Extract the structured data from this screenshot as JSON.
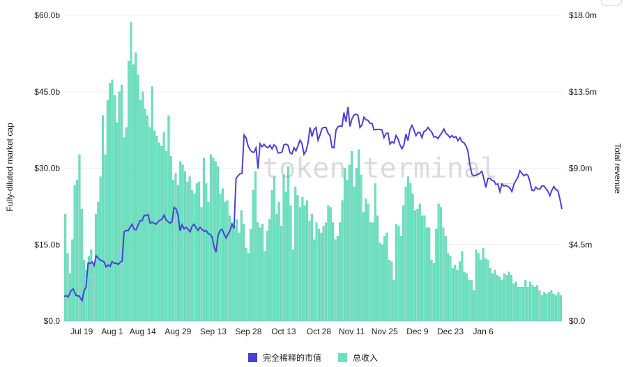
{
  "colors": {
    "bar": "#6ee0c0",
    "bar_stroke": "#4fcfab",
    "line": "#4b3fd6",
    "grid": "#ededed"
  },
  "watermark": "token terminal_",
  "legend": [
    {
      "label": "完全稀释的市值",
      "color": "#4b3fd6"
    },
    {
      "label": "总收入",
      "color": "#6ee0c0"
    }
  ],
  "chart_data": {
    "type": "bar+line",
    "left_axis": {
      "label": "Fully-diluted market cap",
      "ticks": [
        "$0.0",
        "$15.0b",
        "$30.0b",
        "$45.0b",
        "$60.0b"
      ],
      "range": [
        0,
        60
      ]
    },
    "right_axis": {
      "label": "Total revenue",
      "ticks": [
        "$0.0",
        "$4.5m",
        "$9.0m",
        "$13.5m",
        "$18.0m"
      ],
      "range": [
        0,
        18
      ]
    },
    "x_ticks": [
      "Jul 19",
      "Aug 1",
      "Aug 14",
      "Aug 29",
      "Sep 13",
      "Sep 28",
      "Oct 13",
      "Oct 28",
      "Nov 11",
      "Nov 25",
      "Dec 9",
      "Dec 23",
      "Jan 6"
    ],
    "x_tick_index": [
      7,
      20,
      33,
      48,
      63,
      78,
      93,
      108,
      122,
      136,
      150,
      164,
      178
    ],
    "grid": true,
    "series": [
      {
        "name": "总收入",
        "kind": "bar",
        "axis": "right",
        "values": [
          6.3,
          4.0,
          2.8,
          4.8,
          8.0,
          8.3,
          9.8,
          6.6,
          3.6,
          3.0,
          3.8,
          4.2,
          3.3,
          6.3,
          7.0,
          8.5,
          12.1,
          9.8,
          13.0,
          14.0,
          14.2,
          13.3,
          11.7,
          13.5,
          13.9,
          10.8,
          11.4,
          15.3,
          17.6,
          15.1,
          15.8,
          14.5,
          13.0,
          13.5,
          12.5,
          12.1,
          11.4,
          13.8,
          11.2,
          10.9,
          10.5,
          10.3,
          11.1,
          10.0,
          12.1,
          9.7,
          8.3,
          8.7,
          8.0,
          9.4,
          9.2,
          8.8,
          8.2,
          8.5,
          7.7,
          7.5,
          8.1,
          8.2,
          6.7,
          9.6,
          8.1,
          7.0,
          9.8,
          9.6,
          9.4,
          9.1,
          7.5,
          7.8,
          7.0,
          7.1,
          6.2,
          5.8,
          5.6,
          6.0,
          5.2,
          6.5,
          5.7,
          4.3,
          4.0,
          5.4,
          7.7,
          8.8,
          5.8,
          5.5,
          5.7,
          4.1,
          5.3,
          6.0,
          7.7,
          8.5,
          6.3,
          7.0,
          5.6,
          8.6,
          7.6,
          9.1,
          6.8,
          4.2,
          7.9,
          7.4,
          6.7,
          7.3,
          6.8,
          7.1,
          5.9,
          6.3,
          4.8,
          5.8,
          5.4,
          5.2,
          5.6,
          5.8,
          6.8,
          6.7,
          5.8,
          4.8,
          5.0,
          5.8,
          7.1,
          9.0,
          8.3,
          9.2,
          10.0,
          7.9,
          9.0,
          10.1,
          8.6,
          6.4,
          7.2,
          6.9,
          5.8,
          5.8,
          8.1,
          6.2,
          4.6,
          4.5,
          5.0,
          5.2,
          3.6,
          3.5,
          2.4,
          5.7,
          5.6,
          5.0,
          6.8,
          7.9,
          8.5,
          8.1,
          7.5,
          6.5,
          6.6,
          6.9,
          6.2,
          6.2,
          5.5,
          5.5,
          3.6,
          3.4,
          5.4,
          6.9,
          6.7,
          5.5,
          5.0,
          4.0,
          3.8,
          3.1,
          3.3,
          3.0,
          3.5,
          4.1,
          2.9,
          2.8,
          2.4,
          2.4,
          1.8,
          4.2,
          4.0,
          3.6,
          4.3,
          3.7,
          3.6,
          3.1,
          2.8,
          3.0,
          2.7,
          2.6,
          2.4,
          2.8,
          2.7,
          2.9,
          2.7,
          2.2,
          2.3,
          2.0,
          2.0,
          2.0,
          2.4,
          2.0,
          2.3,
          2.1,
          2.0,
          2.1,
          1.8,
          1.5,
          1.7,
          1.6,
          1.7,
          1.8,
          1.6,
          1.5,
          1.7,
          1.5
        ]
      },
      {
        "name": "完全稀释的市值",
        "kind": "line",
        "axis": "left",
        "values": [
          [
            0,
            4.8
          ],
          [
            2,
            5.0
          ],
          [
            4,
            4.7
          ],
          [
            7,
            6.0
          ],
          [
            9,
            6.3
          ],
          [
            12,
            5.0
          ],
          [
            15,
            4.9
          ],
          [
            18,
            4.0
          ],
          [
            20,
            6.0
          ],
          [
            22,
            6.7
          ],
          [
            24,
            11.4
          ],
          [
            26,
            11.3
          ],
          [
            28,
            11.6
          ],
          [
            30,
            10.9
          ],
          [
            32,
            12.8
          ],
          [
            34,
            12.4
          ],
          [
            36,
            12.0
          ],
          [
            38,
            11.8
          ],
          [
            40,
            11.6
          ],
          [
            42,
            10.6
          ],
          [
            44,
            11.0
          ],
          [
            46,
            10.7
          ],
          [
            48,
            11.7
          ],
          [
            50,
            11.3
          ],
          [
            52,
            11.4
          ],
          [
            54,
            11.1
          ],
          [
            56,
            11.5
          ],
          [
            58,
            11.8
          ],
          [
            60,
            17.5
          ],
          [
            62,
            17.8
          ],
          [
            64,
            17.7
          ],
          [
            66,
            18.4
          ],
          [
            68,
            19.0
          ],
          [
            70,
            18.0
          ],
          [
            72,
            17.9
          ],
          [
            74,
            18.8
          ],
          [
            76,
            19.7
          ],
          [
            78,
            19.7
          ],
          [
            80,
            20.7
          ],
          [
            82,
            20.7
          ],
          [
            84,
            20.9
          ],
          [
            86,
            19.2
          ],
          [
            88,
            19.4
          ],
          [
            90,
            19.2
          ],
          [
            92,
            19.0
          ],
          [
            94,
            19.5
          ],
          [
            96,
            19.8
          ],
          [
            98,
            20.0
          ],
          [
            100,
            20.8
          ],
          [
            102,
            19.9
          ],
          [
            104,
            19.5
          ],
          [
            106,
            19.2
          ],
          [
            108,
            19.5
          ],
          [
            110,
            22.3
          ],
          [
            112,
            22.0
          ],
          [
            114,
            20.8
          ],
          [
            116,
            17.7
          ],
          [
            118,
            18.9
          ],
          [
            120,
            18.1
          ],
          [
            122,
            18.4
          ],
          [
            124,
            18.0
          ],
          [
            126,
            17.5
          ],
          [
            128,
            18.6
          ],
          [
            130,
            19.0
          ],
          [
            132,
            18.3
          ],
          [
            134,
            17.8
          ],
          [
            136,
            18.4
          ],
          [
            138,
            18.0
          ],
          [
            140,
            17.6
          ],
          [
            142,
            17.8
          ],
          [
            144,
            17.2
          ],
          [
            146,
            17.0
          ],
          [
            148,
            16.5
          ],
          [
            150,
            14.6
          ],
          [
            152,
            13.5
          ],
          [
            154,
            16.8
          ],
          [
            156,
            17.8
          ],
          [
            158,
            18.0
          ],
          [
            160,
            17.1
          ],
          [
            162,
            16.3
          ],
          [
            164,
            17.0
          ],
          [
            166,
            17.8
          ],
          [
            168,
            19.0
          ],
          [
            170,
            18.2
          ],
          [
            172,
            28.0
          ],
          [
            174,
            28.5
          ],
          [
            176,
            28.9
          ],
          [
            178,
            29.0
          ],
          [
            180,
            36.5
          ],
          [
            182,
            36.0
          ],
          [
            184,
            34.4
          ],
          [
            186,
            33.6
          ],
          [
            188,
            33.2
          ],
          [
            190,
            33.1
          ],
          [
            192,
            34.0
          ],
          [
            194,
            29.9
          ],
          [
            196,
            34.8
          ],
          [
            198,
            34.2
          ],
          [
            200,
            34.7
          ],
          [
            202,
            34.2
          ],
          [
            204,
            34.0
          ],
          [
            206,
            34.5
          ],
          [
            208,
            33.8
          ],
          [
            210,
            34.6
          ],
          [
            212,
            34.2
          ],
          [
            214,
            33.0
          ],
          [
            216,
            33.0
          ],
          [
            218,
            33.2
          ],
          [
            220,
            34.6
          ],
          [
            222,
            34.7
          ],
          [
            224,
            34.5
          ],
          [
            226,
            33.0
          ],
          [
            228,
            32.8
          ],
          [
            230,
            34.0
          ],
          [
            232,
            33.4
          ],
          [
            234,
            34.4
          ],
          [
            236,
            35.5
          ],
          [
            238,
            34.8
          ],
          [
            240,
            32.7
          ],
          [
            242,
            33.4
          ],
          [
            244,
            34.9
          ],
          [
            246,
            38.0
          ],
          [
            248,
            36.2
          ],
          [
            250,
            37.5
          ],
          [
            252,
            38.0
          ],
          [
            254,
            35.5
          ],
          [
            256,
            36.5
          ],
          [
            258,
            37.8
          ],
          [
            260,
            38.0
          ],
          [
            262,
            38.0
          ],
          [
            264,
            36.9
          ],
          [
            266,
            36.4
          ],
          [
            268,
            34.1
          ],
          [
            270,
            34.0
          ],
          [
            272,
            37.5
          ],
          [
            274,
            38.1
          ],
          [
            276,
            38.3
          ],
          [
            278,
            38.2
          ],
          [
            280,
            40.9
          ],
          [
            282,
            39.1
          ],
          [
            284,
            42.0
          ],
          [
            286,
            38.2
          ],
          [
            288,
            39.7
          ],
          [
            290,
            40.4
          ],
          [
            292,
            40.6
          ],
          [
            294,
            40.4
          ],
          [
            296,
            38.0
          ],
          [
            298,
            38.5
          ],
          [
            300,
            40.0
          ],
          [
            302,
            39.5
          ],
          [
            304,
            39.4
          ],
          [
            306,
            38.8
          ],
          [
            308,
            38.8
          ],
          [
            310,
            37.5
          ],
          [
            312,
            37.6
          ],
          [
            314,
            37.6
          ],
          [
            316,
            37.6
          ],
          [
            318,
            37.5
          ],
          [
            320,
            36.0
          ],
          [
            322,
            36.8
          ],
          [
            324,
            36.9
          ],
          [
            326,
            34.7
          ],
          [
            328,
            35.2
          ],
          [
            330,
            34.9
          ],
          [
            332,
            36.4
          ],
          [
            334,
            35.8
          ],
          [
            336,
            34.6
          ],
          [
            338,
            33.8
          ],
          [
            340,
            34.6
          ],
          [
            342,
            36.7
          ],
          [
            344,
            35.4
          ],
          [
            346,
            37.6
          ],
          [
            348,
            38.4
          ],
          [
            350,
            37.5
          ],
          [
            352,
            36.4
          ],
          [
            354,
            37.0
          ],
          [
            356,
            37.0
          ],
          [
            358,
            36.0
          ],
          [
            360,
            37.2
          ],
          [
            362,
            37.4
          ],
          [
            364,
            38.0
          ],
          [
            366,
            37.5
          ],
          [
            368,
            37.0
          ],
          [
            370,
            36.1
          ],
          [
            372,
            36.2
          ],
          [
            374,
            35.8
          ],
          [
            376,
            36.4
          ],
          [
            378,
            37.0
          ],
          [
            380,
            37.7
          ],
          [
            382,
            36.8
          ],
          [
            384,
            36.5
          ],
          [
            386,
            36.0
          ],
          [
            388,
            36.4
          ],
          [
            390,
            36.0
          ],
          [
            392,
            36.2
          ],
          [
            394,
            35.4
          ],
          [
            396,
            36.0
          ],
          [
            398,
            35.2
          ],
          [
            400,
            35.0
          ],
          [
            402,
            34.4
          ],
          [
            404,
            33.4
          ],
          [
            406,
            30.6
          ],
          [
            408,
            28.8
          ],
          [
            410,
            28.5
          ],
          [
            412,
            28.6
          ],
          [
            414,
            28.8
          ],
          [
            416,
            29.0
          ],
          [
            418,
            29.4
          ],
          [
            420,
            27.9
          ],
          [
            422,
            26.2
          ],
          [
            424,
            28.0
          ],
          [
            426,
            28.0
          ],
          [
            428,
            27.6
          ],
          [
            430,
            27.5
          ],
          [
            432,
            26.8
          ],
          [
            434,
            26.9
          ],
          [
            436,
            25.4
          ],
          [
            438,
            26.9
          ],
          [
            440,
            26.5
          ],
          [
            442,
            26.6
          ],
          [
            444,
            26.4
          ],
          [
            446,
            26.1
          ],
          [
            448,
            25.4
          ],
          [
            450,
            26.8
          ],
          [
            452,
            27.6
          ],
          [
            454,
            28.2
          ],
          [
            456,
            29.5
          ],
          [
            458,
            29.0
          ],
          [
            460,
            28.5
          ],
          [
            462,
            28.8
          ],
          [
            464,
            28.6
          ],
          [
            466,
            27.4
          ],
          [
            468,
            25.7
          ],
          [
            470,
            25.6
          ],
          [
            472,
            26.3
          ],
          [
            474,
            25.9
          ],
          [
            476,
            25.9
          ],
          [
            478,
            26.5
          ],
          [
            480,
            26.5
          ],
          [
            482,
            26.0
          ],
          [
            484,
            25.5
          ],
          [
            486,
            24.6
          ],
          [
            488,
            25.7
          ],
          [
            490,
            26.4
          ],
          [
            492,
            25.8
          ],
          [
            494,
            25.6
          ],
          [
            496,
            24.0
          ],
          [
            498,
            22.0
          ]
        ]
      }
    ]
  }
}
